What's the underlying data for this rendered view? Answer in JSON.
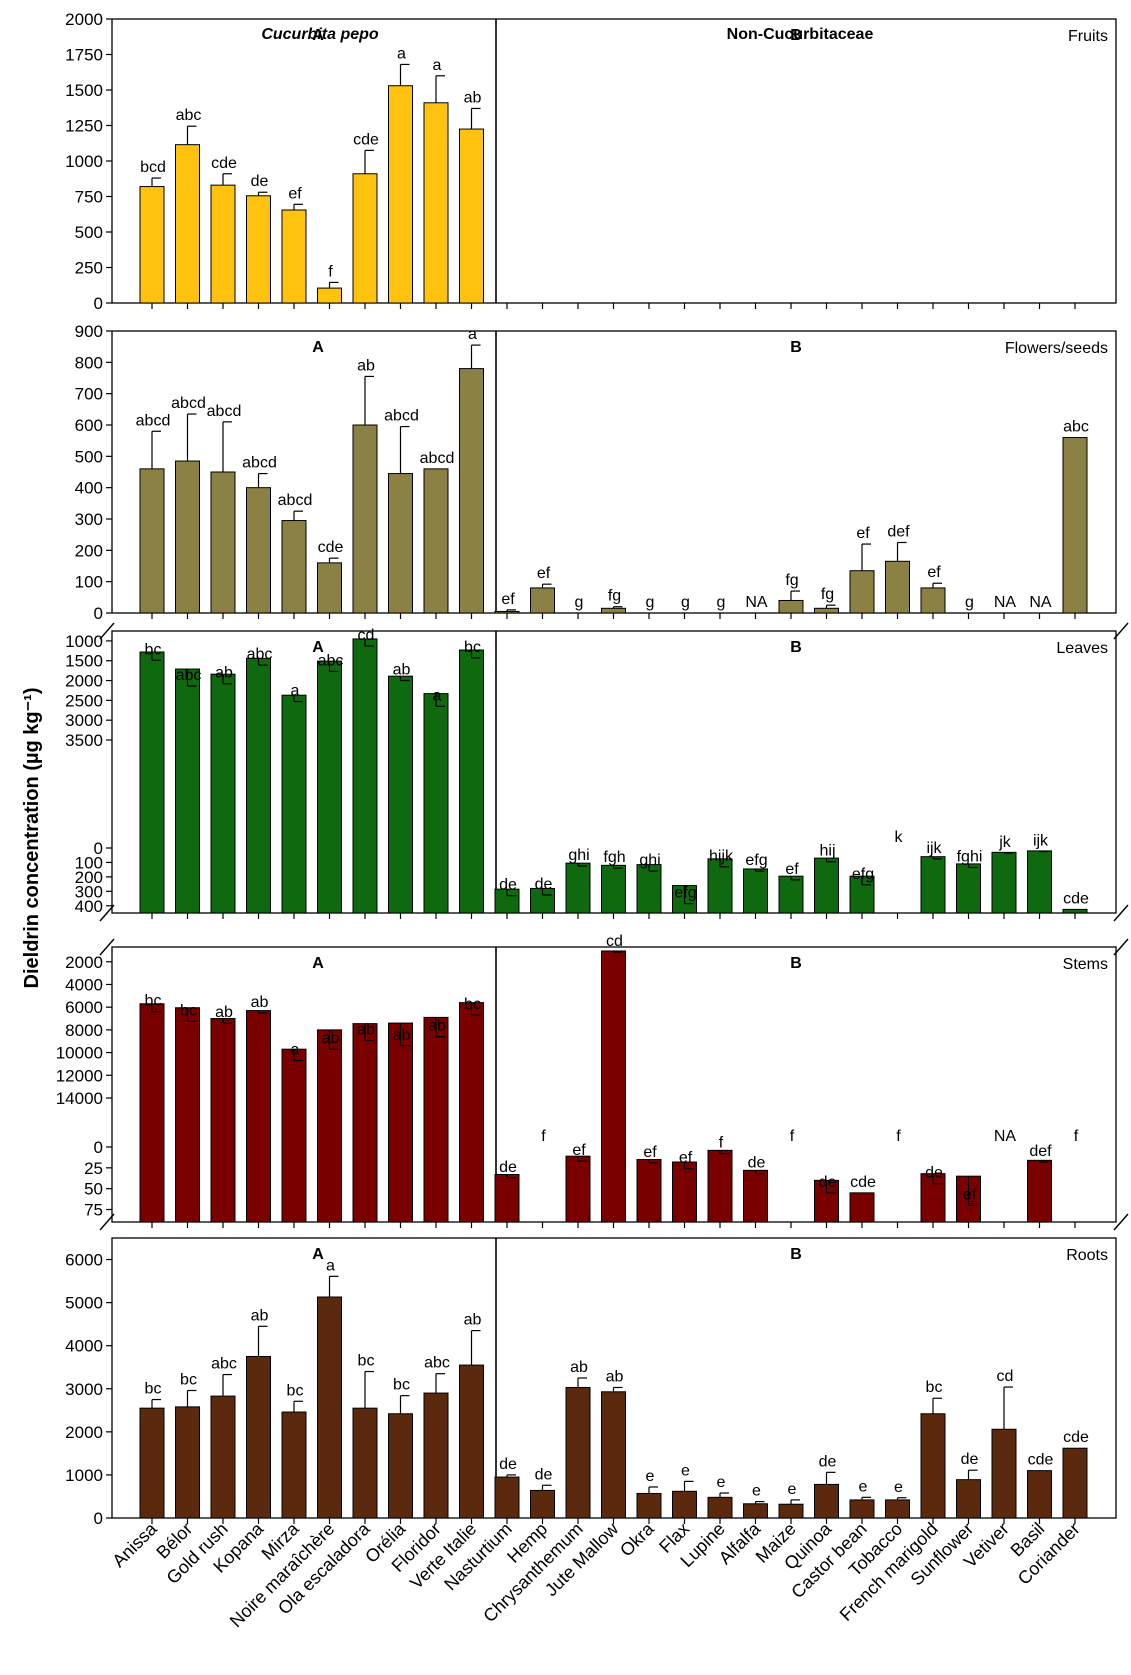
{
  "chart_data": {
    "type": "bar",
    "ylabel": "Dieldrin concentration (µg kg⁻¹)",
    "categories": [
      "Anissa",
      "Bélor",
      "Gold rush",
      "Kopana",
      "Mirza",
      "Noire maraîchère",
      "Ola escaladora",
      "Orélia",
      "Floridor",
      "Verte Italie",
      "Nasturtium",
      "Hemp",
      "Chrysanthemum",
      "Jute Mallow",
      "Okra",
      "Flax",
      "Lupine",
      "Alfalfa",
      "Maize",
      "Quinoa",
      "Castor bean",
      "Tobacco",
      "French marigold",
      "Sunflower",
      "Vetiver",
      "Basil",
      "Coriander"
    ],
    "group_labels": {
      "A": "A",
      "B": "B"
    },
    "group_titles": [
      "Cucurbita pepo",
      "Non-Cucurbitaceae"
    ],
    "panels": [
      {
        "organ": "Fruits",
        "color": "#FFC20E",
        "ylim": [
          0,
          2000
        ],
        "yticks": [
          0,
          250,
          500,
          750,
          1000,
          1250,
          1500,
          1750,
          2000
        ],
        "values": [
          820,
          1115,
          830,
          755,
          655,
          105,
          910,
          1530,
          1410,
          1225,
          null,
          null,
          null,
          null,
          null,
          null,
          null,
          null,
          null,
          null,
          null,
          null,
          null,
          null,
          null,
          null,
          null
        ],
        "errors": [
          60,
          130,
          80,
          25,
          40,
          40,
          165,
          150,
          190,
          145,
          null,
          null,
          null,
          null,
          null,
          null,
          null,
          null,
          null,
          null,
          null,
          null,
          null,
          null,
          null,
          null,
          null
        ],
        "letters": [
          "bcd",
          "abc",
          "cde",
          "de",
          "ef",
          "f",
          "cde",
          "a",
          "a",
          "ab",
          "",
          "",
          "",
          "",
          "",
          "",
          "",
          "",
          "",
          "",
          "",
          "",
          "",
          "",
          "",
          "",
          ""
        ]
      },
      {
        "organ": "Flowers/seeds",
        "color": "#8B8145",
        "ylim": [
          0,
          900
        ],
        "yticks": [
          0,
          100,
          200,
          300,
          400,
          500,
          600,
          700,
          800,
          900
        ],
        "values": [
          460,
          485,
          450,
          400,
          295,
          160,
          600,
          445,
          460,
          780,
          5,
          80,
          0,
          15,
          0,
          0,
          0,
          0,
          40,
          15,
          135,
          165,
          80,
          0,
          0,
          0,
          560
        ],
        "errors": [
          120,
          150,
          160,
          45,
          30,
          15,
          155,
          150,
          0,
          75,
          5,
          12,
          0,
          5,
          0,
          0,
          0,
          0,
          30,
          10,
          85,
          60,
          15,
          0,
          0,
          0,
          0
        ],
        "letters": [
          "abcd",
          "abcd",
          "abcd",
          "abcd",
          "abcd",
          "cde",
          "ab",
          "abcd",
          "abcd",
          "a",
          "ef",
          "ef",
          "g",
          "fg",
          "g",
          "g",
          "g",
          "NA",
          "fg",
          "fg",
          "ef",
          "def",
          "ef",
          "g",
          "NA",
          "NA",
          "abc"
        ]
      },
      {
        "organ": "Leaves",
        "color": "#0F6A0F",
        "break_low": [
          0,
          450
        ],
        "break_high": [
          750,
          3500
        ],
        "yticks_low": [
          0,
          100,
          200,
          300,
          400
        ],
        "yticks_high": [
          1000,
          1500,
          2000,
          2500,
          3000,
          3500
        ],
        "values": [
          1280,
          1710,
          1840,
          1440,
          2370,
          1510,
          950,
          1890,
          2330,
          1230,
          285,
          280,
          105,
          120,
          115,
          260,
          75,
          145,
          195,
          70,
          195,
          0,
          60,
          110,
          30,
          20,
          425
        ],
        "errors": [
          210,
          430,
          240,
          170,
          160,
          260,
          180,
          110,
          320,
          200,
          45,
          45,
          20,
          20,
          45,
          125,
          55,
          15,
          25,
          25,
          60,
          0,
          15,
          25,
          5,
          5,
          0
        ],
        "letters": [
          "bc",
          "abc",
          "ab",
          "abc",
          "a",
          "abc",
          "cd",
          "ab",
          "a",
          "bc",
          "de",
          "de",
          "ghi",
          "fgh",
          "ghi",
          "efg",
          "hijk",
          "efg",
          "ef",
          "hij",
          "efg",
          "k",
          "ijk",
          "fghi",
          "jk",
          "ijk",
          "cde"
        ]
      },
      {
        "organ": "Stems",
        "color": "#7A0000",
        "break_low": [
          0,
          90
        ],
        "break_high": [
          700,
          14000
        ],
        "yticks_low": [
          0,
          25,
          50,
          75
        ],
        "yticks_high": [
          2000,
          4000,
          6000,
          8000,
          10000,
          12000,
          14000
        ],
        "values": [
          5700,
          6050,
          7000,
          6300,
          9700,
          8000,
          7450,
          7400,
          6900,
          5600,
          33,
          0,
          11,
          1050,
          15,
          18,
          4,
          28,
          0,
          40,
          55,
          0,
          32,
          35,
          0,
          16,
          0
        ],
        "errors": [
          700,
          1200,
          400,
          200,
          1000,
          1700,
          1500,
          2000,
          1700,
          1100,
          4,
          0,
          6,
          100,
          4,
          8,
          4,
          4,
          0,
          15,
          0,
          0,
          12,
          35,
          0,
          2,
          0
        ],
        "letters": [
          "bc",
          "bc",
          "ab",
          "ab",
          "a",
          "ab",
          "ab",
          "ab",
          "ab",
          "bc",
          "de",
          "f",
          "ef",
          "cd",
          "ef",
          "ef",
          "f",
          "de",
          "f",
          "de",
          "cde",
          "f",
          "de",
          "ef",
          "NA",
          "def",
          "f"
        ]
      },
      {
        "organ": "Roots",
        "color": "#5B2A0E",
        "ylim": [
          0,
          6500
        ],
        "yticks": [
          0,
          1000,
          2000,
          3000,
          4000,
          5000,
          6000
        ],
        "values": [
          2550,
          2580,
          2830,
          3750,
          2460,
          5130,
          2550,
          2420,
          2900,
          3550,
          950,
          640,
          3030,
          2930,
          570,
          620,
          480,
          330,
          320,
          780,
          420,
          420,
          2420,
          890,
          2060,
          1100,
          1620
        ],
        "errors": [
          200,
          380,
          500,
          700,
          250,
          480,
          850,
          420,
          450,
          800,
          50,
          120,
          220,
          100,
          150,
          230,
          100,
          50,
          100,
          280,
          60,
          50,
          360,
          220,
          980,
          0,
          0
        ],
        "letters": [
          "bc",
          "bc",
          "abc",
          "ab",
          "bc",
          "a",
          "bc",
          "bc",
          "abc",
          "ab",
          "de",
          "de",
          "ab",
          "ab",
          "e",
          "e",
          "e",
          "e",
          "e",
          "de",
          "e",
          "e",
          "bc",
          "de",
          "cd",
          "cde",
          "cde"
        ]
      }
    ]
  }
}
